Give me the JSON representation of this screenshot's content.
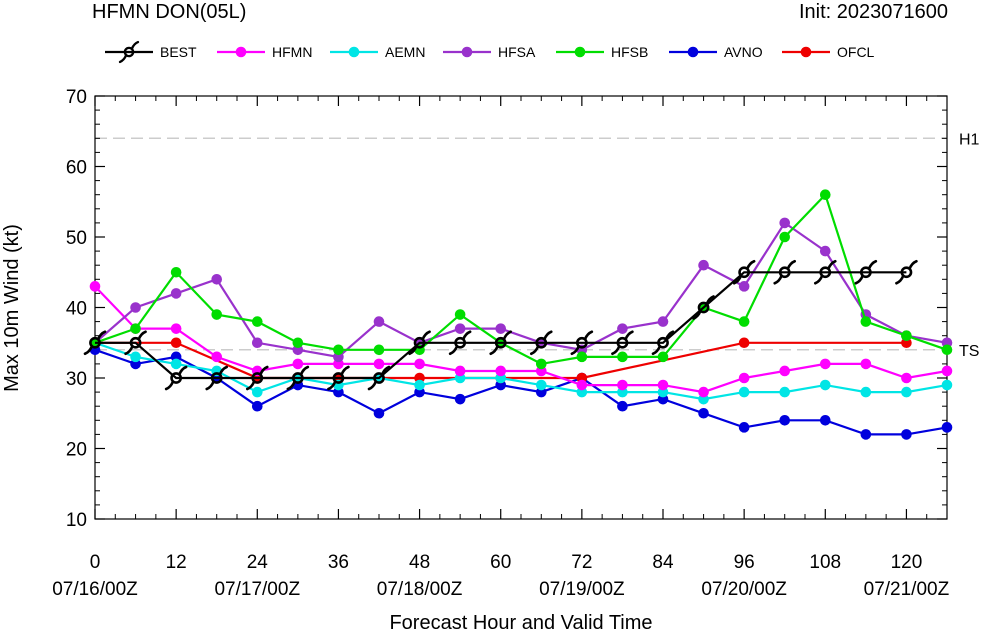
{
  "header": {
    "title": "HFMN DON(05L)",
    "init": "Init: 2023071600"
  },
  "chart_data": {
    "type": "line",
    "title": "HFMN DON(05L)",
    "subtitle": "Init: 2023071600",
    "xlabel": "Forecast Hour and Valid Time",
    "ylabel": "Max 10m Wind (kt)",
    "xlim": [
      0,
      126
    ],
    "ylim": [
      10,
      70
    ],
    "x_ticks": [
      0,
      12,
      24,
      36,
      48,
      60,
      72,
      84,
      96,
      108,
      120
    ],
    "y_ticks": [
      10,
      20,
      30,
      40,
      50,
      60,
      70
    ],
    "date_ticks": [
      {
        "x": 0,
        "label": "07/16/00Z"
      },
      {
        "x": 24,
        "label": "07/17/00Z"
      },
      {
        "x": 48,
        "label": "07/18/00Z"
      },
      {
        "x": 72,
        "label": "07/19/00Z"
      },
      {
        "x": 96,
        "label": "07/20/00Z"
      },
      {
        "x": 120,
        "label": "07/21/00Z"
      }
    ],
    "reference_lines": [
      {
        "y": 64,
        "label": "H1"
      },
      {
        "y": 34,
        "label": "TS"
      }
    ],
    "grid": false,
    "legend_position": "top",
    "series": [
      {
        "name": "BEST",
        "color": "#000000",
        "marker": "hurricane-icon",
        "x": [
          0,
          6,
          12,
          18,
          24,
          30,
          36,
          42,
          48,
          54,
          60,
          66,
          72,
          78,
          84,
          90,
          96,
          102,
          108,
          114,
          120
        ],
        "y": [
          35,
          35,
          30,
          30,
          30,
          30,
          30,
          30,
          35,
          35,
          35,
          35,
          35,
          35,
          35,
          40,
          45,
          45,
          45,
          45,
          45
        ]
      },
      {
        "name": "HFMN",
        "color": "#ff00ff",
        "marker": "circle",
        "x": [
          0,
          6,
          12,
          18,
          24,
          30,
          36,
          42,
          48,
          54,
          60,
          66,
          72,
          78,
          84,
          90,
          96,
          102,
          108,
          114,
          120,
          126
        ],
        "y": [
          43,
          37,
          37,
          33,
          31,
          32,
          32,
          32,
          32,
          31,
          31,
          31,
          29,
          29,
          29,
          28,
          30,
          31,
          32,
          32,
          30,
          31
        ]
      },
      {
        "name": "AEMN",
        "color": "#00e5e5",
        "marker": "circle",
        "x": [
          0,
          6,
          12,
          18,
          24,
          30,
          36,
          42,
          48,
          54,
          60,
          66,
          72,
          78,
          84,
          90,
          96,
          102,
          108,
          114,
          120,
          126
        ],
        "y": [
          35,
          33,
          32,
          31,
          28,
          30,
          29,
          30,
          29,
          30,
          30,
          29,
          28,
          28,
          28,
          27,
          28,
          28,
          29,
          28,
          28,
          29
        ]
      },
      {
        "name": "HFSA",
        "color": "#9932cc",
        "marker": "circle",
        "x": [
          0,
          6,
          12,
          18,
          24,
          30,
          36,
          42,
          48,
          54,
          60,
          66,
          72,
          78,
          84,
          90,
          96,
          102,
          108,
          114,
          120,
          126
        ],
        "y": [
          35,
          40,
          42,
          44,
          35,
          34,
          33,
          38,
          35,
          37,
          37,
          35,
          34,
          37,
          38,
          46,
          43,
          52,
          48,
          39,
          36,
          35
        ]
      },
      {
        "name": "HFSB",
        "color": "#00dd00",
        "marker": "circle",
        "x": [
          0,
          6,
          12,
          18,
          24,
          30,
          36,
          42,
          48,
          54,
          60,
          66,
          72,
          78,
          84,
          90,
          96,
          102,
          108,
          114,
          120,
          126
        ],
        "y": [
          35,
          37,
          45,
          39,
          38,
          35,
          34,
          34,
          34,
          39,
          35,
          32,
          33,
          33,
          33,
          40,
          38,
          50,
          56,
          38,
          36,
          34
        ]
      },
      {
        "name": "AVNO",
        "color": "#0000dd",
        "marker": "circle",
        "x": [
          0,
          6,
          12,
          18,
          24,
          30,
          36,
          42,
          48,
          54,
          60,
          66,
          72,
          78,
          84,
          90,
          96,
          102,
          108,
          114,
          120,
          126
        ],
        "y": [
          34,
          32,
          33,
          30,
          26,
          29,
          28,
          25,
          28,
          27,
          29,
          28,
          30,
          26,
          27,
          25,
          23,
          24,
          24,
          22,
          22,
          23
        ]
      },
      {
        "name": "OFCL",
        "color": "#ee0000",
        "marker": "circle",
        "x": [
          0,
          12,
          24,
          36,
          48,
          60,
          72,
          96,
          120
        ],
        "y": [
          35,
          35,
          30,
          30,
          30,
          30,
          30,
          35,
          35
        ]
      }
    ]
  }
}
